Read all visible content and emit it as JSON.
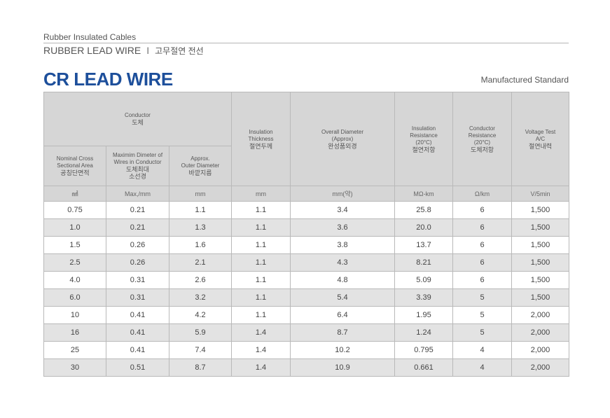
{
  "header": {
    "category": "Rubber Insulated Cables",
    "subtitle": "RUBBER LEAD WIRE",
    "separator": "I",
    "subtitle_korean": "고무절연 전선"
  },
  "title": "CR LEAD WIRE",
  "standard_label": "Manufactured Standard",
  "table": {
    "group_header": {
      "en": "Conductor",
      "kr": "도체"
    },
    "sub_headers": [
      {
        "lines": [
          "Nominal Cross",
          "Sectional Area"
        ],
        "kr": "공칭단면적"
      },
      {
        "lines": [
          "Maximim Dimeter of",
          "Wires in Conductor"
        ],
        "kr": [
          "도체최대",
          "소선경"
        ]
      },
      {
        "lines": [
          "Approx.",
          "Outer Diameter"
        ],
        "kr": "바깥지름"
      }
    ],
    "columns": [
      {
        "lines": [
          "Insulation",
          "Thickness"
        ],
        "kr": "절연두께"
      },
      {
        "lines": [
          "Overall Diameter",
          "(Approx)"
        ],
        "kr": "완성품외경"
      },
      {
        "lines": [
          "Insulation",
          "Resistance",
          "(20°C)"
        ],
        "kr": "절연저항"
      },
      {
        "lines": [
          "Conductor",
          "Resistance",
          "(20°C)"
        ],
        "kr": "도체저항"
      },
      {
        "lines": [
          "Voltage Test",
          "A/C"
        ],
        "kr": "절연내력"
      }
    ],
    "units": [
      "㎟",
      "Max,/mm",
      "mm",
      "mm",
      "mm(약)",
      "MΩ-km",
      "Ω/km",
      "V/5min"
    ],
    "rows": [
      [
        "0.75",
        "0.21",
        "1.1",
        "1.1",
        "3.4",
        "25.8",
        "6",
        "1,500"
      ],
      [
        "1.0",
        "0.21",
        "1.3",
        "1.1",
        "3.6",
        "20.0",
        "6",
        "1,500"
      ],
      [
        "1.5",
        "0.26",
        "1.6",
        "1.1",
        "3.8",
        "13.7",
        "6",
        "1,500"
      ],
      [
        "2.5",
        "0.26",
        "2.1",
        "1.1",
        "4.3",
        "8.21",
        "6",
        "1,500"
      ],
      [
        "4.0",
        "0.31",
        "2.6",
        "1.1",
        "4.8",
        "5.09",
        "6",
        "1,500"
      ],
      [
        "6.0",
        "0.31",
        "3.2",
        "1.1",
        "5.4",
        "3.39",
        "5",
        "1,500"
      ],
      [
        "10",
        "0.41",
        "4.2",
        "1.1",
        "6.4",
        "1.95",
        "5",
        "2,000"
      ],
      [
        "16",
        "0.41",
        "5.9",
        "1.4",
        "8.7",
        "1.24",
        "5",
        "2,000"
      ],
      [
        "25",
        "0.41",
        "7.4",
        "1.4",
        "10.2",
        "0.795",
        "4",
        "2,000"
      ],
      [
        "30",
        "0.51",
        "8.7",
        "1.4",
        "10.9",
        "0.661",
        "4",
        "2,000"
      ]
    ]
  }
}
